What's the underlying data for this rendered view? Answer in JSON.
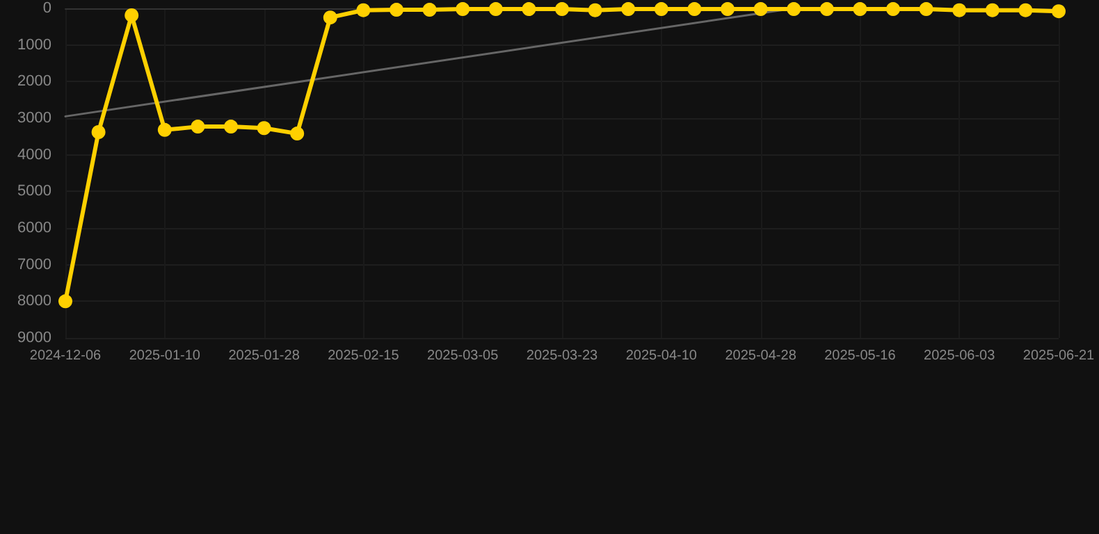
{
  "chart_data": {
    "type": "line",
    "categories": [
      "2024-12-06",
      null,
      null,
      "2025-01-10",
      null,
      null,
      "2025-01-28",
      null,
      null,
      "2025-02-15",
      null,
      null,
      "2025-03-05",
      null,
      null,
      "2025-03-23",
      null,
      null,
      "2025-04-10",
      null,
      null,
      "2025-04-28",
      null,
      null,
      "2025-05-16",
      null,
      null,
      "2025-06-03",
      null,
      null,
      "2025-06-21"
    ],
    "series": [
      {
        "color": "#ffd000",
        "marker": "circle",
        "values": [
          8000,
          3380,
          190,
          3320,
          3230,
          3230,
          3270,
          3420,
          250,
          50,
          40,
          40,
          20,
          20,
          20,
          20,
          50,
          20,
          20,
          20,
          20,
          20,
          20,
          20,
          20,
          20,
          20,
          50,
          50,
          50,
          80
        ]
      },
      {
        "color": "#666666",
        "marker": "none",
        "values": [
          2950,
          null,
          null,
          null,
          null,
          null,
          null,
          null,
          null,
          null,
          null,
          null,
          null,
          null,
          null,
          null,
          null,
          null,
          null,
          null,
          null,
          null,
          0,
          null,
          null,
          null,
          null,
          null,
          null,
          null,
          null
        ]
      }
    ],
    "ylim": [
      9000,
      0
    ],
    "yticks": [
      0,
      1000,
      2000,
      3000,
      4000,
      5000,
      6000,
      7000,
      8000,
      9000
    ],
    "grid": true
  }
}
